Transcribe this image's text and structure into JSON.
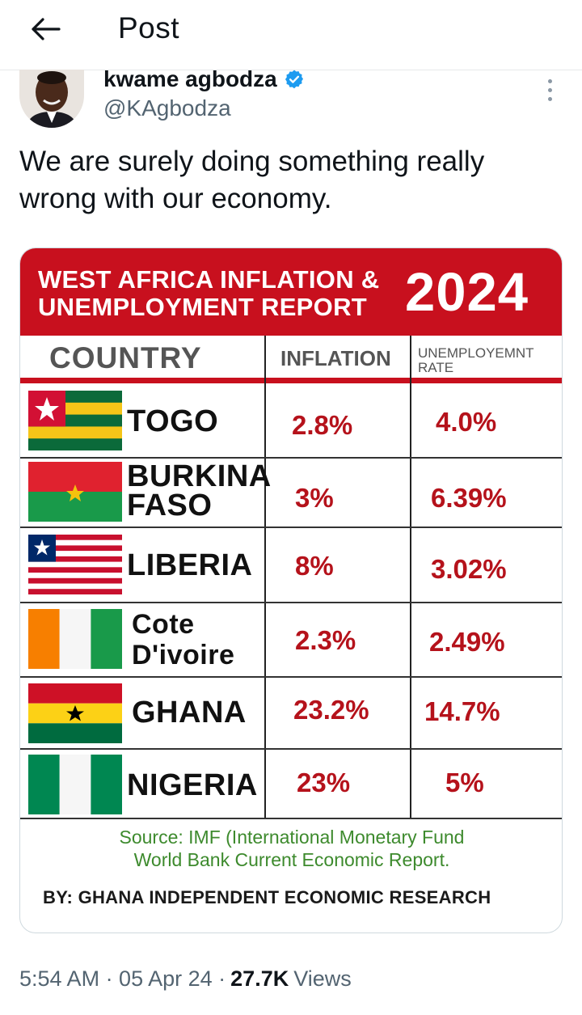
{
  "header": {
    "title": "Post",
    "back_icon": "arrow-left-icon"
  },
  "author": {
    "name": "kwame agbodza",
    "handle": "@KAgbodza",
    "verified_color": "#1d9bf0"
  },
  "post": {
    "text": "We are surely doing something really wrong with our economy.",
    "timestamp": "5:54 AM · 05 Apr 24 ·",
    "views_count": "27.7K",
    "views_label": "Views"
  },
  "infographic": {
    "title_line1": "WEST AFRICA INFLATION &",
    "title_line2": "UNEMPLOYMENT REPORT",
    "year": "2024",
    "col_country": "COUNTRY",
    "col_inflation": "INFLATION",
    "col_unemp_line1": "UNEMPLOYEMNT",
    "col_unemp_line2": "RATE",
    "rows": [
      {
        "country_line1": "TOGO",
        "country_line2": "",
        "inflation": "2.8%",
        "unemployment": "4.0%"
      },
      {
        "country_line1": "BURKINA",
        "country_line2": "FASO",
        "inflation": "3%",
        "unemployment": "6.39%"
      },
      {
        "country_line1": "LIBERIA",
        "country_line2": "",
        "inflation": "8%",
        "unemployment": "3.02%"
      },
      {
        "country_line1": "Cote",
        "country_line2": "D'ivoire",
        "inflation": "2.3%",
        "unemployment": "2.49%"
      },
      {
        "country_line1": "GHANA",
        "country_line2": "",
        "inflation": "23.2%",
        "unemployment": "14.7%"
      },
      {
        "country_line1": "NIGERIA",
        "country_line2": "",
        "inflation": "23%",
        "unemployment": "5%"
      }
    ],
    "source_line1": "Source: IMF (International Monetary Fund",
    "source_line2": "World Bank Current Economic Report.",
    "byline": "BY: GHANA INDEPENDENT ECONOMIC RESEARCH",
    "accent_color": "#c8101e",
    "value_color": "#b5121b",
    "source_color": "#3d8a2d"
  }
}
